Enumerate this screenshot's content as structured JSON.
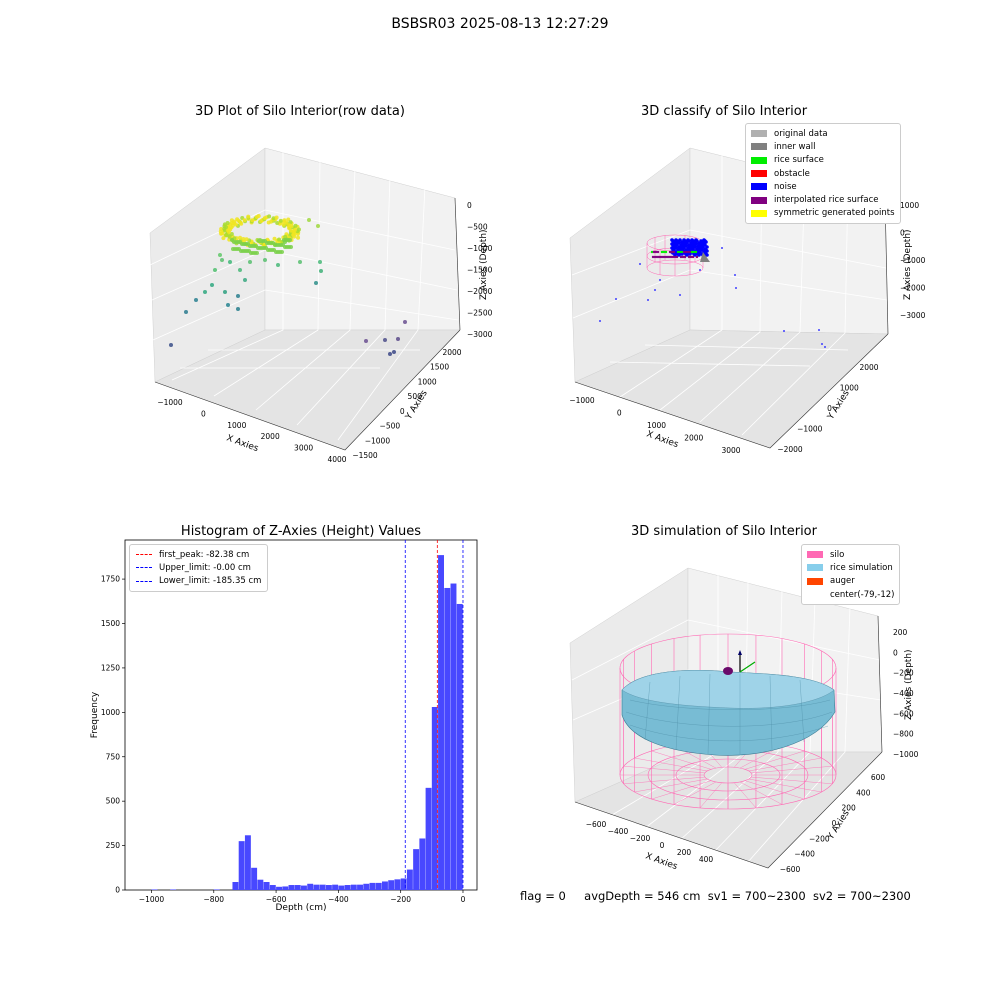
{
  "suptitle": "BSBSR03 2025-08-13 12:27:29",
  "footer": {
    "flag": "flag = 0",
    "avg_depth": "avgDepth = 546 cm",
    "sv1": "sv1 = 700~2300",
    "sv2": "sv2 = 700~2300"
  },
  "chart_data": [
    {
      "type": "scatter",
      "projection": "3d",
      "title": "3D Plot of Silo Interior(row data)",
      "xlabel": "X Axies",
      "ylabel": "Y Axies",
      "zlabel": "Z Axies (Depth)",
      "x_ticks": [
        "−1000",
        "0",
        "1000",
        "2000",
        "3000",
        "4000"
      ],
      "y_ticks": [
        "−1500",
        "−1000",
        "−500",
        "0",
        "500",
        "1000",
        "1500",
        "2000"
      ],
      "z_ticks": [
        "−3000",
        "−2500",
        "−2000",
        "−1500",
        "−1000",
        "−500",
        "0"
      ],
      "colormap": "viridis"
    },
    {
      "type": "scatter",
      "projection": "3d",
      "title": "3D classify of Silo Interior",
      "xlabel": "X Axies",
      "ylabel": "Y Axies",
      "zlabel": "Z Axies (Depth)",
      "x_ticks": [
        "−1000",
        "0",
        "1000",
        "2000",
        "3000"
      ],
      "y_ticks": [
        "−2000",
        "−1000",
        "0",
        "1000",
        "2000"
      ],
      "z_ticks": [
        "−3000",
        "−2000",
        "−1000",
        "0",
        "1000"
      ],
      "legend": [
        {
          "name": "original data",
          "color": "#b0b0b0"
        },
        {
          "name": "inner wall",
          "color": "#808080"
        },
        {
          "name": "rice surface",
          "color": "#00ee00"
        },
        {
          "name": "obstacle",
          "color": "#ff0000"
        },
        {
          "name": "noise",
          "color": "#0000ff"
        },
        {
          "name": "interpolated rice surface",
          "color": "#800080"
        },
        {
          "name": "symmetric generated points",
          "color": "#ffff00"
        }
      ]
    },
    {
      "type": "bar",
      "title": "Histogram of Z-Axies (Height) Values",
      "xlabel": "Depth (cm)",
      "ylabel": "Frequency",
      "xlim": [
        -1085,
        45
      ],
      "ylim": [
        0,
        1970
      ],
      "x_ticks": [
        -1000,
        -800,
        -600,
        -400,
        -200,
        0
      ],
      "x_tick_labels": [
        "−1000",
        "−800",
        "−600",
        "−400",
        "−200",
        "0"
      ],
      "y_ticks": [
        0,
        250,
        500,
        750,
        1000,
        1250,
        1500,
        1750
      ],
      "bar_color": "#4848ff",
      "bin_width": 20,
      "bins": [
        {
          "x": -1000,
          "count": 3
        },
        {
          "x": -940,
          "count": 3
        },
        {
          "x": -800,
          "count": 3
        },
        {
          "x": -740,
          "count": 45
        },
        {
          "x": -720,
          "count": 275
        },
        {
          "x": -700,
          "count": 308
        },
        {
          "x": -680,
          "count": 125
        },
        {
          "x": -660,
          "count": 58
        },
        {
          "x": -640,
          "count": 45
        },
        {
          "x": -620,
          "count": 28
        },
        {
          "x": -600,
          "count": 18
        },
        {
          "x": -580,
          "count": 20
        },
        {
          "x": -560,
          "count": 28
        },
        {
          "x": -540,
          "count": 28
        },
        {
          "x": -520,
          "count": 25
        },
        {
          "x": -500,
          "count": 35
        },
        {
          "x": -480,
          "count": 30
        },
        {
          "x": -460,
          "count": 30
        },
        {
          "x": -440,
          "count": 28
        },
        {
          "x": -420,
          "count": 30
        },
        {
          "x": -400,
          "count": 25
        },
        {
          "x": -380,
          "count": 28
        },
        {
          "x": -360,
          "count": 30
        },
        {
          "x": -340,
          "count": 30
        },
        {
          "x": -320,
          "count": 35
        },
        {
          "x": -300,
          "count": 40
        },
        {
          "x": -280,
          "count": 40
        },
        {
          "x": -260,
          "count": 48
        },
        {
          "x": -240,
          "count": 55
        },
        {
          "x": -220,
          "count": 60
        },
        {
          "x": -200,
          "count": 65
        },
        {
          "x": -180,
          "count": 115
        },
        {
          "x": -160,
          "count": 230
        },
        {
          "x": -140,
          "count": 290
        },
        {
          "x": -120,
          "count": 575
        },
        {
          "x": -100,
          "count": 1030
        },
        {
          "x": -80,
          "count": 1885
        },
        {
          "x": -60,
          "count": 1700
        },
        {
          "x": -40,
          "count": 1725
        },
        {
          "x": -20,
          "count": 1610
        }
      ],
      "vlines": [
        {
          "x": -82.38,
          "color": "#ff0000",
          "label": "first_peak: -82.38 cm"
        },
        {
          "x": -0.001,
          "color": "#0000ff",
          "label": "Upper_limit: -0.00 cm"
        },
        {
          "x": -185.35,
          "color": "#0000ff",
          "label": "Lower_limit: -185.35 cm"
        }
      ]
    },
    {
      "type": "surface",
      "projection": "3d",
      "title": "3D simulation of Silo Interior",
      "xlabel": "X Axies",
      "ylabel": "Y Axies",
      "zlabel": "Z Axies (Depth)",
      "x_ticks": [
        "−600",
        "−400",
        "−200",
        "0",
        "200",
        "400"
      ],
      "y_ticks": [
        "−600",
        "−400",
        "−200",
        "0",
        "200",
        "400",
        "600"
      ],
      "z_ticks": [
        "−1000",
        "−800",
        "−600",
        "−400",
        "−200",
        "0",
        "200"
      ],
      "legend": [
        {
          "name": "silo",
          "color": "#ff69b4"
        },
        {
          "name": "rice simulation",
          "color": "#87ceeb"
        },
        {
          "name": "auger",
          "color": "#ff4500"
        },
        {
          "name": "center(-79,-12)",
          "color": "#ffffff"
        }
      ]
    }
  ]
}
